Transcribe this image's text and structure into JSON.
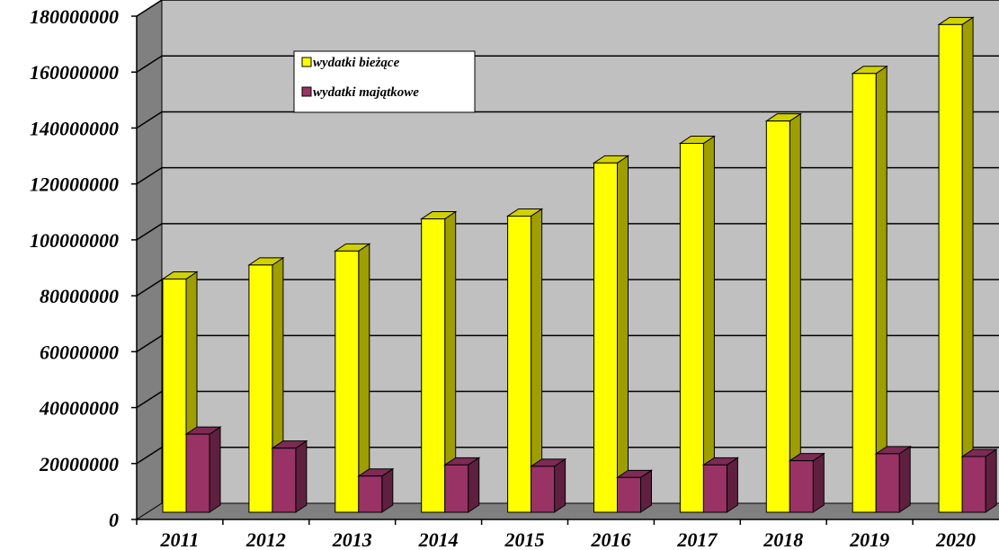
{
  "chart_data": {
    "type": "bar",
    "categories": [
      "2011",
      "2012",
      "2013",
      "2014",
      "2015",
      "2016",
      "2017",
      "2018",
      "2019",
      "2020"
    ],
    "series": [
      {
        "name": "wydatki bieżące",
        "color": "#FFFF00",
        "values": [
          86000000,
          91000000,
          96000000,
          107500000,
          108500000,
          127500000,
          134500000,
          142500000,
          159500000,
          177000000
        ]
      },
      {
        "name": "wydatki majątkowe",
        "color": "#993366",
        "values": [
          30500000,
          25500000,
          15500000,
          19500000,
          19000000,
          15000000,
          19500000,
          21000000,
          23500000,
          22500000
        ]
      }
    ],
    "ylim": [
      0,
      180000000
    ],
    "yticks": [
      "0",
      "20000000",
      "40000000",
      "60000000",
      "80000000",
      "100000000",
      "120000000",
      "140000000",
      "160000000",
      "180000000"
    ],
    "grid": true,
    "legend_position": "top-left",
    "style": "3d",
    "colors": {
      "plot_back": "#C0C0C0",
      "left_wall": "#808080",
      "floor": "#808080"
    }
  }
}
